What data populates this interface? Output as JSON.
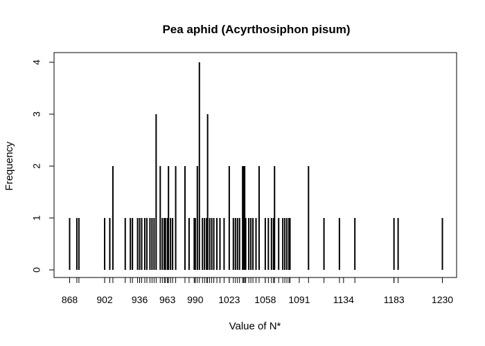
{
  "chart_data": {
    "type": "bar",
    "title": "Pea aphid (Acyrthosiphon pisum)",
    "xlabel": "Value of N*",
    "ylabel": "Frequency",
    "xlim": [
      859,
      1238
    ],
    "ylim": [
      0,
      4
    ],
    "grid": false,
    "x_tick_labels": [
      868,
      902,
      936,
      963,
      990,
      1023,
      1058,
      1091,
      1134,
      1183,
      1230
    ],
    "y_tick_labels": [
      0,
      1,
      2,
      3,
      4
    ],
    "bars": [
      {
        "x": 868,
        "y": 1
      },
      {
        "x": 875,
        "y": 1
      },
      {
        "x": 877,
        "y": 1
      },
      {
        "x": 902,
        "y": 1
      },
      {
        "x": 907,
        "y": 1
      },
      {
        "x": 910,
        "y": 2
      },
      {
        "x": 922,
        "y": 1
      },
      {
        "x": 927,
        "y": 1
      },
      {
        "x": 929,
        "y": 1
      },
      {
        "x": 934,
        "y": 1
      },
      {
        "x": 936,
        "y": 1
      },
      {
        "x": 938,
        "y": 1
      },
      {
        "x": 941,
        "y": 1
      },
      {
        "x": 943,
        "y": 1
      },
      {
        "x": 946,
        "y": 1
      },
      {
        "x": 948,
        "y": 1
      },
      {
        "x": 950,
        "y": 1
      },
      {
        "x": 952,
        "y": 3
      },
      {
        "x": 956,
        "y": 2
      },
      {
        "x": 958,
        "y": 1
      },
      {
        "x": 960,
        "y": 1
      },
      {
        "x": 961,
        "y": 1
      },
      {
        "x": 963,
        "y": 1
      },
      {
        "x": 964,
        "y": 2
      },
      {
        "x": 966,
        "y": 1
      },
      {
        "x": 968,
        "y": 1
      },
      {
        "x": 971,
        "y": 2
      },
      {
        "x": 980,
        "y": 2
      },
      {
        "x": 984,
        "y": 1
      },
      {
        "x": 989,
        "y": 1
      },
      {
        "x": 990,
        "y": 1
      },
      {
        "x": 992,
        "y": 2
      },
      {
        "x": 994,
        "y": 4
      },
      {
        "x": 997,
        "y": 1
      },
      {
        "x": 999,
        "y": 1
      },
      {
        "x": 1001,
        "y": 1
      },
      {
        "x": 1002,
        "y": 3
      },
      {
        "x": 1004,
        "y": 1
      },
      {
        "x": 1006,
        "y": 1
      },
      {
        "x": 1008,
        "y": 1
      },
      {
        "x": 1011,
        "y": 1
      },
      {
        "x": 1014,
        "y": 1
      },
      {
        "x": 1018,
        "y": 1
      },
      {
        "x": 1023,
        "y": 2
      },
      {
        "x": 1027,
        "y": 1
      },
      {
        "x": 1029,
        "y": 1
      },
      {
        "x": 1031,
        "y": 1
      },
      {
        "x": 1033,
        "y": 1
      },
      {
        "x": 1036,
        "y": 2
      },
      {
        "x": 1037,
        "y": 2
      },
      {
        "x": 1038,
        "y": 2
      },
      {
        "x": 1039,
        "y": 1
      },
      {
        "x": 1042,
        "y": 1
      },
      {
        "x": 1044,
        "y": 1
      },
      {
        "x": 1046,
        "y": 1
      },
      {
        "x": 1049,
        "y": 1
      },
      {
        "x": 1052,
        "y": 2
      },
      {
        "x": 1058,
        "y": 1
      },
      {
        "x": 1061,
        "y": 1
      },
      {
        "x": 1064,
        "y": 1
      },
      {
        "x": 1066,
        "y": 1
      },
      {
        "x": 1067,
        "y": 2
      },
      {
        "x": 1071,
        "y": 1
      },
      {
        "x": 1075,
        "y": 1
      },
      {
        "x": 1077,
        "y": 1
      },
      {
        "x": 1079,
        "y": 1
      },
      {
        "x": 1081,
        "y": 1
      },
      {
        "x": 1082,
        "y": 1
      },
      {
        "x": 1100,
        "y": 2
      },
      {
        "x": 1115,
        "y": 1
      },
      {
        "x": 1130,
        "y": 1
      },
      {
        "x": 1145,
        "y": 1
      },
      {
        "x": 1183,
        "y": 1
      },
      {
        "x": 1187,
        "y": 1
      },
      {
        "x": 1230,
        "y": 1
      }
    ],
    "rug_ticks": [
      868,
      875,
      877,
      902,
      907,
      910,
      922,
      927,
      929,
      934,
      936,
      938,
      941,
      943,
      946,
      948,
      950,
      952,
      956,
      958,
      960,
      961,
      963,
      964,
      966,
      968,
      971,
      980,
      984,
      989,
      990,
      992,
      994,
      997,
      999,
      1001,
      1002,
      1004,
      1006,
      1008,
      1011,
      1014,
      1018,
      1023,
      1027,
      1029,
      1031,
      1033,
      1036,
      1037,
      1038,
      1039,
      1042,
      1044,
      1046,
      1049,
      1052,
      1058,
      1061,
      1064,
      1066,
      1067,
      1071,
      1075,
      1077,
      1079,
      1081,
      1082,
      1100,
      1115,
      1130,
      1145,
      1183,
      1187,
      1230
    ],
    "color": "#000000"
  }
}
